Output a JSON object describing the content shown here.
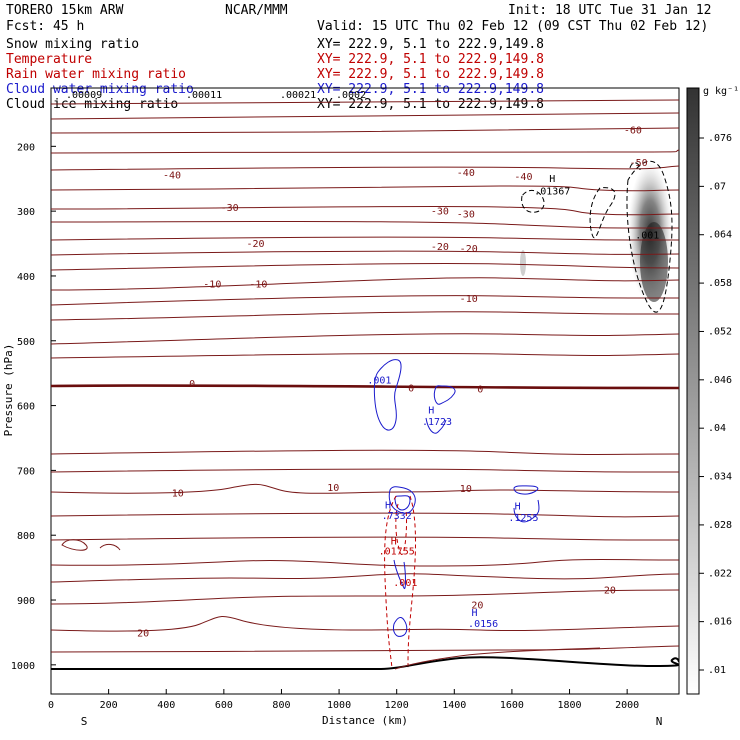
{
  "header": {
    "model": "TORERO  15km ARW",
    "center": "NCAR/MMM",
    "init": "Init: 18 UTC Tue 31 Jan 12",
    "fcst": "Fcst:   45 h",
    "valid": "Valid: 15 UTC Thu 02 Feb 12 (09 CST Thu 02 Feb 12)"
  },
  "fields": [
    {
      "name": "Snow mixing ratio",
      "xy": "XY= 222.9,  5.1 to 222.9,149.8",
      "color": "#000000"
    },
    {
      "name": "Temperature",
      "xy": "XY= 222.9,  5.1 to 222.9,149.8",
      "color": "#c00000"
    },
    {
      "name": "Rain water mixing ratio",
      "xy": "XY= 222.9,  5.1 to 222.9,149.8",
      "color": "#c00000"
    },
    {
      "name": "Cloud water mixing ratio",
      "xy": "XY= 222.9,  5.1 to 222.9,149.8",
      "color": "#1a1acc"
    },
    {
      "name": "Cloud ice mixing ratio",
      "xy": "XY= 222.9,  5.1 to 222.9,149.8",
      "color": "#000000"
    }
  ],
  "colorbar": {
    "unit": "g kg⁻¹",
    "ticks": [
      ".01",
      ".016",
      ".022",
      ".028",
      ".034",
      ".04",
      ".046",
      ".052",
      ".058",
      ".064",
      ".07",
      ".076"
    ]
  },
  "chart_data": {
    "type": "cross-section contour",
    "xlabel": "Distance (km)",
    "ylabel": "Pressure (hPa)",
    "x_ticks": [
      0,
      200,
      400,
      600,
      800,
      1000,
      1200,
      1400,
      1600,
      1800,
      2000
    ],
    "y_ticks": [
      200,
      300,
      400,
      500,
      600,
      700,
      800,
      900,
      1000
    ],
    "xlim": [
      0,
      2180
    ],
    "ylim": [
      1045,
      110
    ],
    "x_end_labels": {
      "left": "S",
      "right": "N"
    },
    "isotherms_C": [
      -60,
      -50,
      -40,
      -30,
      -20,
      -10,
      0,
      10,
      20
    ],
    "top_labels": [
      ".00009",
      ".00011",
      ".00021",
      ".0002"
    ],
    "contour_labels": [
      {
        "text": "-60",
        "x": 2020,
        "p": 180,
        "color": "#7a1010"
      },
      {
        "text": "-50",
        "x": 2040,
        "p": 230,
        "color": "#7a1010"
      },
      {
        "text": "-40",
        "x": 420,
        "p": 250,
        "color": "#7a1010"
      },
      {
        "text": "-40",
        "x": 1440,
        "p": 246,
        "color": "#7a1010"
      },
      {
        "text": "-40",
        "x": 1640,
        "p": 252,
        "color": "#7a1010"
      },
      {
        "text": "-30",
        "x": 620,
        "p": 300,
        "color": "#7a1010"
      },
      {
        "text": "-30",
        "x": 1350,
        "p": 305,
        "color": "#7a1010"
      },
      {
        "text": "-30",
        "x": 1440,
        "p": 310,
        "color": "#7a1010"
      },
      {
        "text": "-20",
        "x": 710,
        "p": 355,
        "color": "#7a1010"
      },
      {
        "text": "-20",
        "x": 1350,
        "p": 360,
        "color": "#7a1010"
      },
      {
        "text": "-20",
        "x": 1450,
        "p": 363,
        "color": "#7a1010"
      },
      {
        "text": "-10",
        "x": 560,
        "p": 418,
        "color": "#7a1010"
      },
      {
        "text": "-10",
        "x": 720,
        "p": 418,
        "color": "#7a1010"
      },
      {
        "text": "-10",
        "x": 1450,
        "p": 440,
        "color": "#7a1010"
      },
      {
        "text": "0",
        "x": 490,
        "p": 571,
        "color": "#7a1010"
      },
      {
        "text": "0",
        "x": 1250,
        "p": 578,
        "color": "#7a1010"
      },
      {
        "text": "0",
        "x": 1490,
        "p": 580,
        "color": "#7a1010"
      },
      {
        "text": "10",
        "x": 440,
        "p": 740,
        "color": "#7a1010"
      },
      {
        "text": "10",
        "x": 980,
        "p": 732,
        "color": "#7a1010"
      },
      {
        "text": "10",
        "x": 1440,
        "p": 733,
        "color": "#7a1010"
      },
      {
        "text": "20",
        "x": 320,
        "p": 956,
        "color": "#7a1010"
      },
      {
        "text": "20",
        "x": 1480,
        "p": 913,
        "color": "#7a1010"
      },
      {
        "text": "20",
        "x": 1940,
        "p": 890,
        "color": "#7a1010"
      },
      {
        "text": ".001",
        "x": 1140,
        "p": 566,
        "color": "#1a1acc"
      },
      {
        "text": "H",
        "x": 1320,
        "p": 612,
        "color": "#1a1acc"
      },
      {
        "text": ".1723",
        "x": 1340,
        "p": 630,
        "color": "#1a1acc"
      },
      {
        "text": "H",
        "x": 1170,
        "p": 759,
        "color": "#1a1acc"
      },
      {
        "text": ".7332",
        "x": 1200,
        "p": 775,
        "color": "#1a1acc"
      },
      {
        "text": "H",
        "x": 1620,
        "p": 760,
        "color": "#1a1acc"
      },
      {
        "text": ".1255",
        "x": 1640,
        "p": 778,
        "color": "#1a1acc"
      },
      {
        "text": "H",
        "x": 1190,
        "p": 814,
        "color": "#c00000"
      },
      {
        "text": ".01755",
        "x": 1200,
        "p": 830,
        "color": "#c00000"
      },
      {
        "text": ".001",
        "x": 1230,
        "p": 878,
        "color": "#c00000"
      },
      {
        "text": "H",
        "x": 1470,
        "p": 925,
        "color": "#1a1acc"
      },
      {
        "text": ".0156",
        "x": 1500,
        "p": 942,
        "color": "#1a1acc"
      },
      {
        "text": "H",
        "x": 1740,
        "p": 255,
        "color": "#000000"
      },
      {
        "text": ".01367",
        "x": 1740,
        "p": 274,
        "color": "#000000"
      },
      {
        "text": ".001",
        "x": 2070,
        "p": 342,
        "color": "#000000"
      }
    ],
    "maxima": {
      "cloud_water": 0.7332,
      "rain_water": 0.01755,
      "ice": 0.01367,
      "cloud_water_2": 0.1723,
      "cloud_water_3": 0.1255,
      "cloud_water_4": 0.0156
    }
  }
}
